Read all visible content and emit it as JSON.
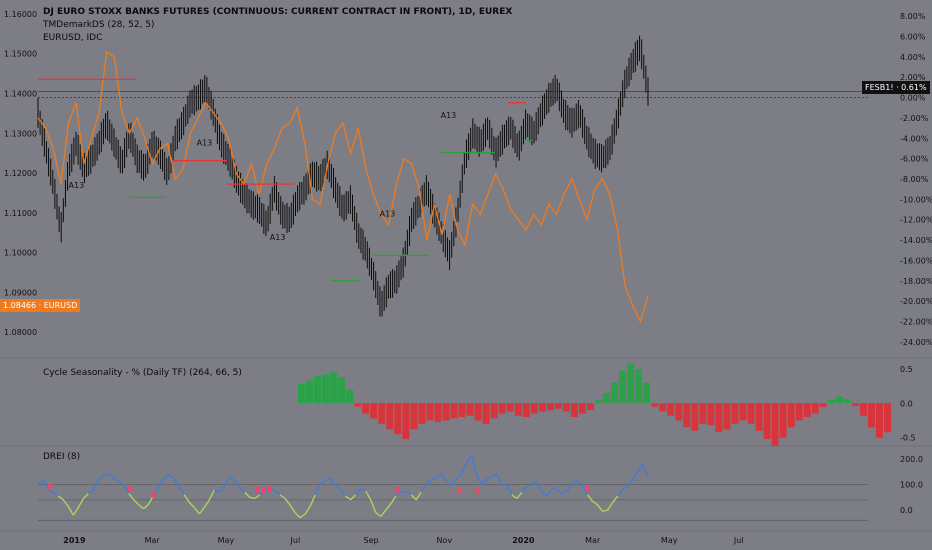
{
  "legend": {
    "title": "DJ EURO STOXX BANKS FUTURES (CONTINUOUS: CURRENT CONTRACT IN FRONT), 1D, EUREX",
    "indicator": "TMDemarkDS (28, 52, 5)",
    "compare": "EURUSD, IDC",
    "seasonality": "Cycle Seasonality - % (Daily TF) (264, 66, 5)",
    "drei": "DREI (8)"
  },
  "badges": {
    "eurusd": "1.08466 · EURUSD",
    "fesb": "FESB1! · 0.61%"
  },
  "colors": {
    "background": "#7d7e85",
    "candle": "#0b0b0b",
    "eurusd_line": "#f07a1e",
    "resistance": "#e8343a",
    "support": "#2f9e3a",
    "season_pos": "#2ba24a",
    "season_neg": "#d8343c",
    "drei_high": "#3f7bd8",
    "drei_low": "#a8d65a",
    "drei_marker": "#e8486a",
    "setup_label": "#e8e8e8",
    "magenta_marker": "#c45ad0"
  },
  "chart_data": [
    {
      "type": "line",
      "name": "main-price",
      "left_axis_ticks": [
        "1.16000",
        "1.15000",
        "1.14000",
        "1.13000",
        "1.12000",
        "1.11000",
        "1.10000",
        "1.09000",
        "1.08000"
      ],
      "left_axis_range": [
        1.075,
        1.162
      ],
      "right_axis_ticks": [
        "8.00%",
        "6.00%",
        "4.00%",
        "2.00%",
        "0.00%",
        "-2.00%",
        "-4.00%",
        "-6.00%",
        "-8.00%",
        "-10.00%",
        "-12.00%",
        "-14.00%",
        "-16.00%",
        "-18.00%",
        "-20.00%",
        "-22.00%",
        "-24.00%"
      ],
      "right_axis_range": [
        -25,
        9
      ],
      "x_labels": [
        "2019",
        "Mar",
        "May",
        "Jul",
        "Sep",
        "Nov",
        "2020",
        "Mar",
        "May",
        "Jul"
      ],
      "x_label_bold": [
        true,
        false,
        false,
        false,
        false,
        false,
        true,
        false,
        false,
        false
      ],
      "eurusd_pct": [
        -2.0,
        -3.0,
        -5.0,
        -8.5,
        -2.5,
        -0.5,
        -6.5,
        -4.0,
        -1.5,
        4.5,
        4.0,
        -1.5,
        -3.5,
        -2.0,
        -4.0,
        -6.5,
        -5.0,
        -4.5,
        -8.0,
        -7.0,
        -3.5,
        -2.0,
        -0.5,
        -1.5,
        -2.5,
        -4.0,
        -7.5,
        -8.5,
        -6.5,
        -9.5,
        -6.5,
        -5.0,
        -3.0,
        -2.5,
        -1.0,
        -4.5,
        -10.0,
        -10.5,
        -6.5,
        -3.5,
        -2.5,
        -5.5,
        -3.0,
        -7.0,
        -9.5,
        -11.5,
        -12.5,
        -8.5,
        -6.0,
        -6.5,
        -9.0,
        -14.0,
        -10.5,
        -13.5,
        -9.5,
        -13.0,
        -14.5,
        -10.5,
        -11.5,
        -9.5,
        -7.5,
        -9.0,
        -11.0,
        -12.0,
        -13.0,
        -11.5,
        -12.5,
        -10.5,
        -11.5,
        -9.5,
        -8.0,
        -10.0,
        -12.0,
        -9.0,
        -8.0,
        -9.5,
        -13.0,
        -18.5,
        -20.5,
        -22.0,
        -19.5
      ],
      "price_pct": [
        -1.5,
        -5.0,
        -8.5,
        -13.0,
        -7.0,
        -4.5,
        -7.0,
        -6.0,
        -4.5,
        -2.5,
        -4.5,
        -6.5,
        -3.5,
        -6.0,
        -7.0,
        -4.5,
        -5.5,
        -7.5,
        -4.0,
        -2.5,
        -0.5,
        0.0,
        1.0,
        -1.5,
        -4.5,
        -6.0,
        -8.0,
        -9.5,
        -10.5,
        -11.0,
        -12.5,
        -9.0,
        -11.5,
        -12.0,
        -10.0,
        -9.0,
        -7.5,
        -8.0,
        -6.5,
        -9.0,
        -11.0,
        -10.0,
        -13.5,
        -15.0,
        -17.5,
        -20.5,
        -18.5,
        -18.0,
        -16.0,
        -12.0,
        -10.5,
        -9.0,
        -11.5,
        -13.5,
        -15.5,
        -11.5,
        -6.0,
        -3.5,
        -4.5,
        -3.0,
        -5.5,
        -4.0,
        -3.0,
        -5.0,
        -2.5,
        -3.5,
        -1.5,
        0.0,
        1.0,
        -1.5,
        -2.5,
        -1.5,
        -4.0,
        -5.5,
        -6.0,
        -5.0,
        -2.0,
        1.5,
        3.5,
        5.0,
        0.6
      ],
      "resistance_levels": [
        {
          "pct": 1.8,
          "from": 0.0,
          "to": 0.16
        },
        {
          "pct": -6.2,
          "from": 0.22,
          "to": 0.31
        },
        {
          "pct": -8.5,
          "from": 0.31,
          "to": 0.42
        },
        {
          "pct": -0.5,
          "from": 0.77,
          "to": 0.8
        }
      ],
      "support_levels": [
        {
          "pct": -9.8,
          "from": 0.15,
          "to": 0.21
        },
        {
          "pct": -18.0,
          "from": 0.48,
          "to": 0.53
        },
        {
          "pct": -15.5,
          "from": 0.55,
          "to": 0.64
        },
        {
          "pct": -5.4,
          "from": 0.66,
          "to": 0.75
        },
        {
          "pct": -4.2,
          "from": 0.8,
          "to": 0.81
        }
      ],
      "setup_labels": [
        {
          "text": "A13",
          "pct": -8.9,
          "at": 0.05
        },
        {
          "text": "A13",
          "pct": -4.7,
          "at": 0.26
        },
        {
          "text": "A13",
          "pct": -14.0,
          "at": 0.38
        },
        {
          "text": "A13",
          "pct": -11.7,
          "at": 0.56
        },
        {
          "text": "A13",
          "pct": -2.0,
          "at": 0.66
        }
      ]
    },
    {
      "type": "bar",
      "name": "cycle-seasonality",
      "y_ticks": [
        "0.5",
        "0.0",
        "-0.5"
      ],
      "ylim": [
        -0.65,
        0.6
      ],
      "values": [
        0.28,
        0.33,
        0.4,
        0.42,
        0.45,
        0.38,
        0.2,
        -0.05,
        -0.15,
        -0.22,
        -0.3,
        -0.38,
        -0.45,
        -0.52,
        -0.38,
        -0.3,
        -0.25,
        -0.27,
        -0.25,
        -0.22,
        -0.2,
        -0.18,
        -0.25,
        -0.3,
        -0.22,
        -0.15,
        -0.12,
        -0.18,
        -0.2,
        -0.15,
        -0.12,
        -0.1,
        -0.08,
        -0.12,
        -0.2,
        -0.15,
        -0.1,
        0.05,
        0.15,
        0.3,
        0.48,
        0.58,
        0.5,
        0.3,
        -0.05,
        -0.12,
        -0.18,
        -0.25,
        -0.35,
        -0.4,
        -0.3,
        -0.32,
        -0.42,
        -0.38,
        -0.3,
        -0.25,
        -0.3,
        -0.4,
        -0.52,
        -0.62,
        -0.5,
        -0.35,
        -0.25,
        -0.2,
        -0.15,
        -0.05,
        0.05,
        0.1,
        0.06,
        -0.04,
        -0.18,
        -0.35,
        -0.5,
        -0.42
      ]
    },
    {
      "type": "line",
      "name": "drei",
      "y_ticks": [
        "200.0",
        "100.0",
        "0.0"
      ],
      "ylim": [
        -70,
        235
      ],
      "values": [
        100,
        120,
        85,
        70,
        55,
        40,
        15,
        -20,
        10,
        45,
        65,
        80,
        120,
        135,
        140,
        125,
        110,
        100,
        65,
        40,
        20,
        5,
        25,
        60,
        95,
        125,
        140,
        120,
        95,
        60,
        30,
        10,
        -15,
        10,
        40,
        80,
        70,
        95,
        130,
        115,
        90,
        70,
        50,
        45,
        60,
        80,
        90,
        75,
        60,
        45,
        20,
        -10,
        -30,
        -15,
        15,
        60,
        100,
        115,
        125,
        100,
        80,
        55,
        40,
        60,
        85,
        75,
        40,
        -10,
        -25,
        0,
        25,
        55,
        70,
        75,
        60,
        40,
        70,
        100,
        120,
        125,
        140,
        115,
        95,
        125,
        140,
        185,
        215,
        140,
        100,
        120,
        130,
        140,
        95,
        100,
        60,
        45,
        70,
        90,
        105,
        110,
        70,
        55,
        85,
        80,
        65,
        75,
        105,
        115,
        95,
        60,
        35,
        20,
        -5,
        0,
        30,
        55,
        80,
        95,
        120,
        150,
        180,
        130
      ],
      "markers_at": [
        0.02,
        0.15,
        0.19,
        0.36,
        0.37,
        0.38,
        0.59,
        0.69,
        0.72,
        0.9
      ],
      "marker_values": [
        90,
        85,
        60,
        80,
        75,
        85,
        80,
        75,
        75,
        85
      ]
    }
  ]
}
